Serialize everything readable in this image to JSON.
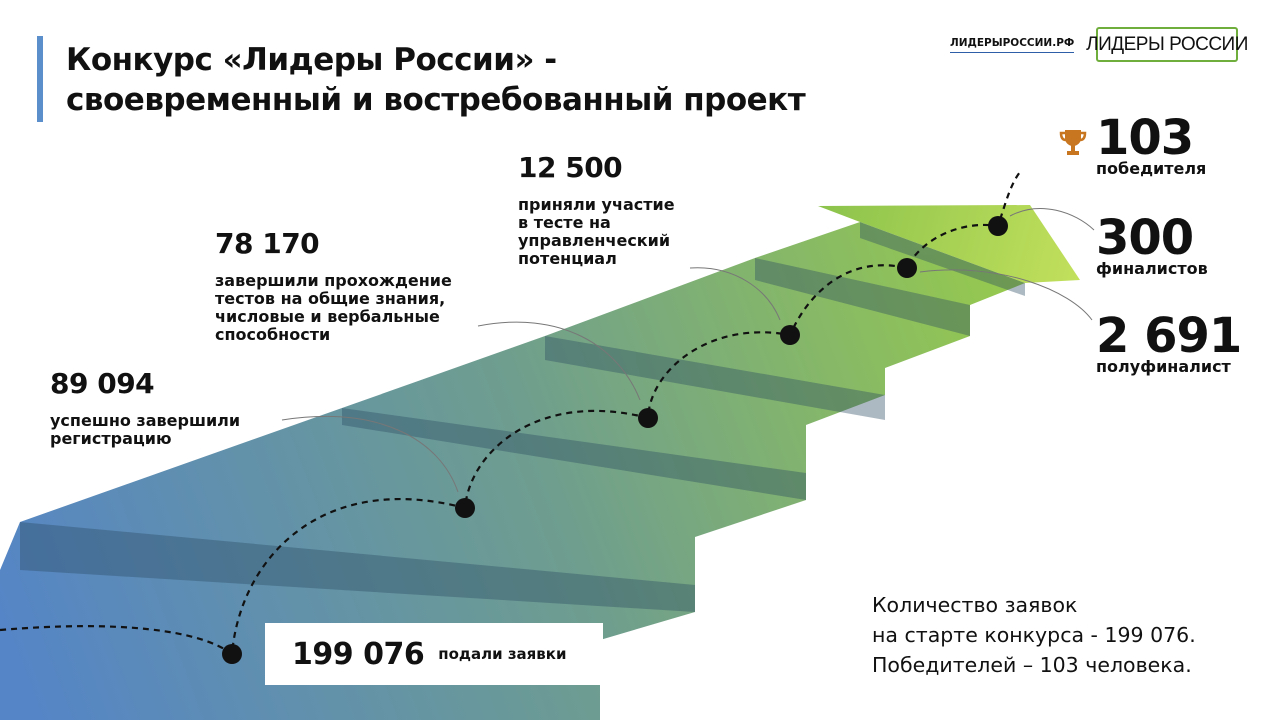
{
  "title": {
    "line1": "Конкурс «Лидеры России» -",
    "line2": "своевременный и востребованный проект"
  },
  "header": {
    "site_link": "ЛИДЕРЫРОССИИ.РФ",
    "logo_text": "ЛИДЕРЫ РОССИИ"
  },
  "steps": [
    {
      "value": "199 076",
      "label": "подали заявки"
    },
    {
      "value": "89 094",
      "label_lines": [
        "успешно завершили",
        "регистрацию"
      ]
    },
    {
      "value": "78 170",
      "label_lines": [
        "завершили прохождение",
        "тестов на общие знания,",
        "числовые и вербальные",
        "способности"
      ]
    },
    {
      "value": "12 500",
      "label_lines": [
        "приняли участие",
        "в тесте на",
        "управленческий",
        "потенциал"
      ]
    },
    {
      "value": "2 691",
      "label": "полуфиналист"
    },
    {
      "value": "300",
      "label": "финалистов"
    },
    {
      "value": "103",
      "label": "победителя",
      "icon": "trophy-icon"
    }
  ],
  "summary": {
    "line1": "Количество заявок",
    "line2": "на старте конкурса - 199 076.",
    "line3": "Победителей – 103 человека."
  },
  "colors": {
    "title_accent": "#5b8fcc",
    "stairs_start": "#5585c6",
    "stairs_mid": "#6f9e8e",
    "stairs_end": "#9bcf45",
    "arrow_tip": "#c2e05c",
    "logo_border": "#6fae3c",
    "trophy": "#c8761f",
    "dot": "#111111"
  }
}
